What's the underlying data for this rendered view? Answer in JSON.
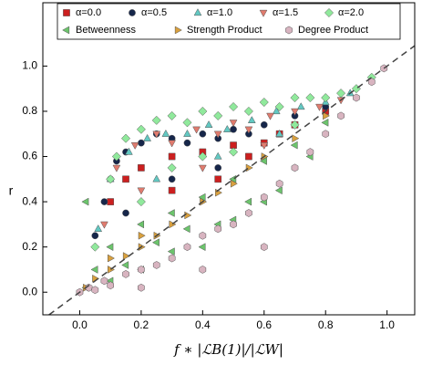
{
  "chart_data": {
    "type": "scatter",
    "xlabel": "f ∗ |ℒB(1)|/|ℒW|",
    "ylabel": "r",
    "xlim": [
      -0.12,
      1.09
    ],
    "ylim": [
      -0.1,
      1.28
    ],
    "xticks": [
      {
        "value": 0,
        "label": "0.0"
      },
      {
        "value": 0.2,
        "label": "0.2"
      },
      {
        "value": 0.4,
        "label": "0.4"
      },
      {
        "value": 0.6,
        "label": "0.6"
      },
      {
        "value": 0.8,
        "label": "0.8"
      },
      {
        "value": 1,
        "label": "1.0"
      }
    ],
    "yticks": [
      {
        "value": 0,
        "label": "0.0"
      },
      {
        "value": 0.2,
        "label": "0.2"
      },
      {
        "value": 0.4,
        "label": "0.4"
      },
      {
        "value": 0.6,
        "label": "0.6"
      },
      {
        "value": 0.8,
        "label": "0.8"
      },
      {
        "value": 1,
        "label": "1.0"
      }
    ],
    "diagonal": true,
    "legend": "upper center",
    "series": [
      {
        "name": "α=0.0",
        "color": "#cc1f1f",
        "marker": "square",
        "x": [
          0.1,
          0.15,
          0.2,
          0.3,
          0.4,
          0.5,
          0.55,
          0.6,
          0.65,
          0.7,
          0.8,
          0.3,
          0.45
        ],
        "values": [
          0.4,
          0.5,
          0.55,
          0.6,
          0.62,
          0.65,
          0.6,
          0.66,
          0.7,
          0.74,
          0.8,
          0.45,
          0.5
        ]
      },
      {
        "name": "α=0.5",
        "color": "#16264a",
        "marker": "circle",
        "x": [
          0.05,
          0.08,
          0.1,
          0.12,
          0.15,
          0.2,
          0.25,
          0.3,
          0.35,
          0.4,
          0.45,
          0.5,
          0.55,
          0.6,
          0.7,
          0.8,
          0.15,
          0.3,
          0.45
        ],
        "values": [
          0.25,
          0.4,
          0.5,
          0.58,
          0.62,
          0.66,
          0.7,
          0.68,
          0.66,
          0.7,
          0.68,
          0.72,
          0.7,
          0.74,
          0.78,
          0.82,
          0.35,
          0.5,
          0.55
        ]
      },
      {
        "name": "α=1.0",
        "color": "#62c8c2",
        "marker": "triangle-up",
        "x": [
          0.06,
          0.1,
          0.16,
          0.22,
          0.28,
          0.35,
          0.42,
          0.48,
          0.56,
          0.64,
          0.72,
          0.8,
          0.88,
          0.25,
          0.45,
          0.65
        ],
        "values": [
          0.28,
          0.5,
          0.62,
          0.68,
          0.7,
          0.7,
          0.74,
          0.72,
          0.76,
          0.8,
          0.82,
          0.84,
          0.88,
          0.5,
          0.6,
          0.7
        ]
      },
      {
        "name": "α=1.5",
        "color": "#e07b6e",
        "marker": "triangle-down",
        "x": [
          0.08,
          0.12,
          0.18,
          0.25,
          0.3,
          0.38,
          0.45,
          0.5,
          0.55,
          0.62,
          0.7,
          0.78,
          0.85,
          0.2,
          0.4,
          0.6
        ],
        "values": [
          0.3,
          0.55,
          0.65,
          0.7,
          0.66,
          0.72,
          0.7,
          0.75,
          0.72,
          0.78,
          0.8,
          0.82,
          0.85,
          0.45,
          0.55,
          0.65
        ]
      },
      {
        "name": "α=2.0",
        "color": "#90e99c",
        "marker": "diamond",
        "x": [
          0.05,
          0.1,
          0.12,
          0.15,
          0.2,
          0.25,
          0.3,
          0.35,
          0.4,
          0.45,
          0.5,
          0.55,
          0.6,
          0.65,
          0.7,
          0.75,
          0.8,
          0.85,
          0.9,
          0.95,
          0.3,
          0.5,
          0.7,
          0.2,
          0.4
        ],
        "values": [
          0.2,
          0.5,
          0.6,
          0.68,
          0.72,
          0.76,
          0.78,
          0.75,
          0.8,
          0.78,
          0.82,
          0.8,
          0.84,
          0.82,
          0.86,
          0.86,
          0.86,
          0.88,
          0.9,
          0.95,
          0.55,
          0.62,
          0.74,
          0.4,
          0.6
        ]
      },
      {
        "name": "Betweenness",
        "color": "#6cc46c",
        "marker": "triangle-left",
        "x": [
          0.02,
          0.05,
          0.1,
          0.15,
          0.2,
          0.25,
          0.3,
          0.35,
          0.4,
          0.45,
          0.5,
          0.55,
          0.6,
          0.65,
          0.7,
          0.75,
          0.8,
          0.1,
          0.2,
          0.3,
          0.5,
          0.6,
          0.02,
          0.4
        ],
        "values": [
          0.02,
          0.1,
          0.2,
          0.12,
          0.3,
          0.22,
          0.35,
          0.28,
          0.42,
          0.3,
          0.5,
          0.4,
          0.58,
          0.45,
          0.65,
          0.6,
          0.75,
          0.05,
          0.1,
          0.18,
          0.32,
          0.4,
          0.4,
          0.2
        ]
      },
      {
        "name": "Strength Product",
        "color": "#d9a03e",
        "marker": "triangle-right",
        "x": [
          0.02,
          0.05,
          0.1,
          0.15,
          0.2,
          0.25,
          0.3,
          0.35,
          0.4,
          0.45,
          0.5,
          0.55,
          0.6,
          0.7,
          0.8,
          0.1,
          0.2
        ],
        "values": [
          0.02,
          0.06,
          0.1,
          0.16,
          0.2,
          0.25,
          0.3,
          0.34,
          0.4,
          0.44,
          0.48,
          0.55,
          0.6,
          0.68,
          0.78,
          0.15,
          0.25
        ]
      },
      {
        "name": "Degree Product",
        "color": "#d8b4c0",
        "marker": "hexagon",
        "x": [
          0.0,
          0.03,
          0.05,
          0.08,
          0.1,
          0.15,
          0.2,
          0.25,
          0.3,
          0.35,
          0.4,
          0.45,
          0.5,
          0.55,
          0.6,
          0.65,
          0.7,
          0.75,
          0.8,
          0.85,
          0.9,
          0.95,
          0.99,
          0.2,
          0.4,
          0.6
        ],
        "values": [
          0.0,
          0.02,
          0.01,
          0.05,
          0.03,
          0.08,
          0.1,
          0.12,
          0.15,
          0.2,
          0.25,
          0.28,
          0.3,
          0.35,
          0.42,
          0.48,
          0.55,
          0.62,
          0.7,
          0.78,
          0.86,
          0.93,
          0.99,
          0.02,
          0.1,
          0.2
        ]
      }
    ]
  }
}
